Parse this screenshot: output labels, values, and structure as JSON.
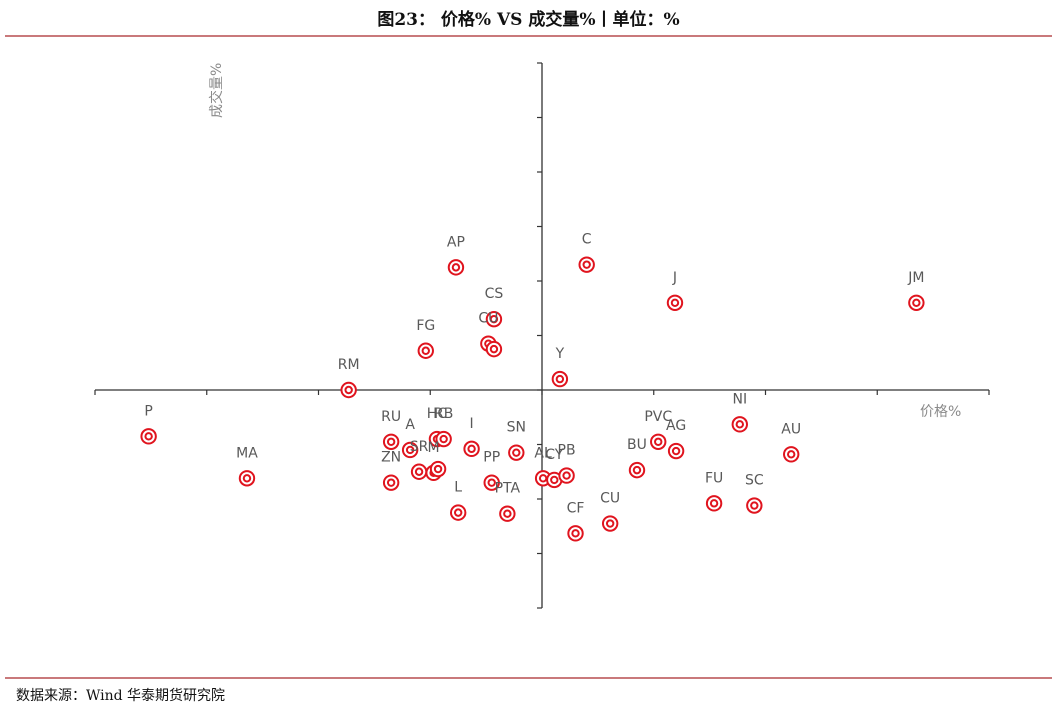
{
  "header": {
    "title": "图23：  价格% VS 成交量%丨单位：%"
  },
  "footer": {
    "source": "数据来源：Wind  华泰期货研究院"
  },
  "colors": {
    "marker": "#e0141e",
    "axis": "#333333",
    "label": "#595959",
    "rule": "#c9797b"
  },
  "chart_data": {
    "type": "scatter",
    "xlabel": "价格%",
    "ylabel": "成交量%",
    "xlim": [
      -4.0,
      4.0
    ],
    "ylim": [
      -4.0,
      6.0
    ],
    "grid": false,
    "points": [
      {
        "label": "AP",
        "x": -0.77,
        "y": 2.25
      },
      {
        "label": "C",
        "x": 0.4,
        "y": 2.3
      },
      {
        "label": "J",
        "x": 1.19,
        "y": 1.6
      },
      {
        "label": "JM",
        "x": 3.35,
        "y": 1.6
      },
      {
        "label": "CS",
        "x": -0.43,
        "y": 1.3
      },
      {
        "label": "CU",
        "x": -0.48,
        "y": 0.85
      },
      {
        "label": "FG",
        "x": -1.04,
        "y": 0.72
      },
      {
        "label": "",
        "x": -0.43,
        "y": 0.75
      },
      {
        "label": "Y",
        "x": 0.16,
        "y": 0.2
      },
      {
        "label": "RM",
        "x": -1.73,
        "y": 0.0
      },
      {
        "label": "P",
        "x": -3.52,
        "y": -0.85
      },
      {
        "label": "MA",
        "x": -2.64,
        "y": -1.62
      },
      {
        "label": "RU",
        "x": -1.35,
        "y": -0.95
      },
      {
        "label": "A",
        "x": -1.18,
        "y": -1.1
      },
      {
        "label": "HC",
        "x": -0.94,
        "y": -0.9
      },
      {
        "label": "RB",
        "x": -0.88,
        "y": -0.9
      },
      {
        "label": "I",
        "x": -0.63,
        "y": -1.08
      },
      {
        "label": "SR",
        "x": -1.1,
        "y": -1.5
      },
      {
        "label": "M",
        "x": -0.97,
        "y": -1.52
      },
      {
        "label": "",
        "x": -0.93,
        "y": -1.45
      },
      {
        "label": "ZN",
        "x": -1.35,
        "y": -1.7
      },
      {
        "label": "SN",
        "x": -0.23,
        "y": -1.15
      },
      {
        "label": "PP",
        "x": -0.45,
        "y": -1.7
      },
      {
        "label": "L",
        "x": -0.75,
        "y": -2.25
      },
      {
        "label": "PTA",
        "x": -0.31,
        "y": -2.27
      },
      {
        "label": "AL",
        "x": 0.01,
        "y": -1.62
      },
      {
        "label": "CY",
        "x": 0.11,
        "y": -1.65
      },
      {
        "label": "PB",
        "x": 0.22,
        "y": -1.57
      },
      {
        "label": "CF",
        "x": 0.3,
        "y": -2.63
      },
      {
        "label": "CU",
        "x": 0.61,
        "y": -2.45
      },
      {
        "label": "BU",
        "x": 0.85,
        "y": -1.47
      },
      {
        "label": "PVC",
        "x": 1.04,
        "y": -0.95
      },
      {
        "label": "AG",
        "x": 1.2,
        "y": -1.12
      },
      {
        "label": "NI",
        "x": 1.77,
        "y": -0.63
      },
      {
        "label": "AU",
        "x": 2.23,
        "y": -1.18
      },
      {
        "label": "FU",
        "x": 1.54,
        "y": -2.08
      },
      {
        "label": "SC",
        "x": 1.9,
        "y": -2.12
      }
    ]
  }
}
